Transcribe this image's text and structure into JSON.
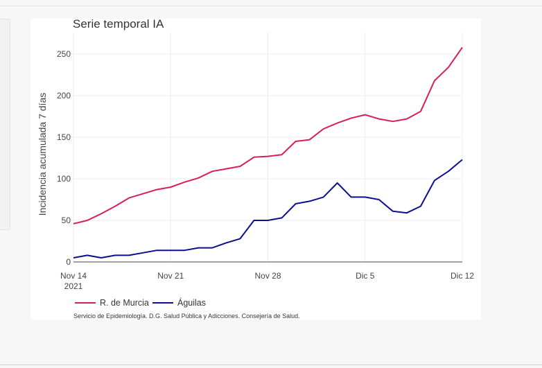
{
  "chart_data": {
    "type": "line",
    "title": "Serie temporal IA",
    "xlabel": "",
    "ylabel": "Incidencia acumulada 7 días",
    "x_tick_labels": [
      "Nov 14",
      "Nov 21",
      "Nov 28",
      "Dic 5",
      "Dic 12"
    ],
    "x_tick_year": "2021",
    "x_tick_days": [
      0,
      7,
      14,
      21,
      28
    ],
    "y_ticks": [
      0,
      50,
      100,
      150,
      200,
      250
    ],
    "ylim": [
      0,
      260
    ],
    "x_range_days": [
      0,
      28
    ],
    "grid": true,
    "legend_position": "bottom-left",
    "series": [
      {
        "name": "R. de Murcia",
        "color": "#d81b5c",
        "values": [
          46,
          50,
          58,
          67,
          77,
          82,
          87,
          90,
          96,
          101,
          109,
          112,
          115,
          126,
          127,
          129,
          145,
          147,
          160,
          167,
          173,
          177,
          172,
          169,
          172,
          181,
          218,
          234,
          258
        ]
      },
      {
        "name": "Águilas",
        "color": "#0d0d8f",
        "values": [
          5,
          8,
          5,
          8,
          8,
          11,
          14,
          14,
          14,
          17,
          17,
          23,
          28,
          50,
          50,
          53,
          70,
          73,
          78,
          95,
          78,
          78,
          75,
          61,
          59,
          67,
          98,
          109,
          123
        ]
      }
    ]
  },
  "source_note": "Servicio de Epidemiología. D.G. Salud Pública y Adicciones. Consejería de Salud."
}
